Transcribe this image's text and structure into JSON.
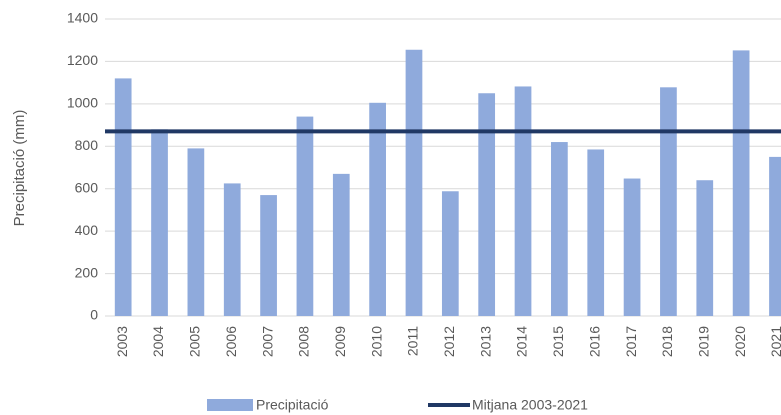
{
  "chart_data": {
    "type": "bar",
    "categories": [
      "2003",
      "2004",
      "2005",
      "2006",
      "2007",
      "2008",
      "2009",
      "2010",
      "2011",
      "2012",
      "2013",
      "2014",
      "2015",
      "2016",
      "2017",
      "2018",
      "2019",
      "2020",
      "2021"
    ],
    "series": [
      {
        "name": "Precipitació",
        "color": "#8faadc",
        "values": [
          1120,
          880,
          790,
          625,
          570,
          940,
          670,
          1005,
          1255,
          588,
          1050,
          1082,
          820,
          785,
          648,
          1078,
          640,
          1252,
          750
        ]
      }
    ],
    "mean": {
      "name": "Mitjana 2003-2021",
      "color": "#203864",
      "value": 870
    },
    "y_label": "Precipitació (mm)",
    "ylim": [
      0,
      1400
    ],
    "yticks": [
      0,
      200,
      400,
      600,
      800,
      1000,
      1200,
      1400
    ],
    "grid": true
  }
}
